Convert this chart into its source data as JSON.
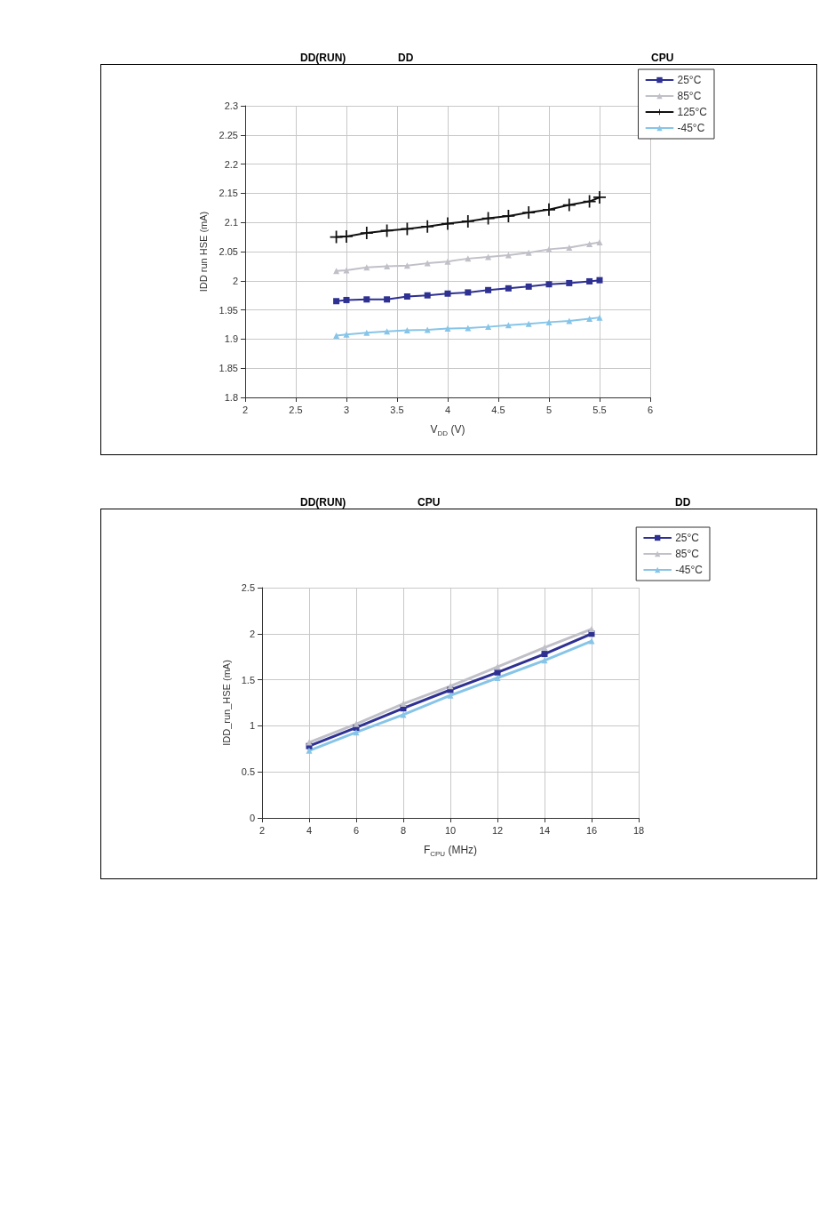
{
  "chart_data": [
    {
      "type": "line",
      "annotations": [
        "DD(RUN)",
        "DD",
        "CPU"
      ],
      "xlabel": "V$_{DD}$ (V)",
      "ylabel": "IDD run HSE (mA)",
      "x": [
        2.9,
        3.0,
        3.2,
        3.4,
        3.6,
        3.8,
        4.0,
        4.2,
        4.4,
        4.6,
        4.8,
        5.0,
        5.2,
        5.4,
        5.5
      ],
      "series": [
        {
          "name": "25°C",
          "color": "#2e3192",
          "marker": "square",
          "values": [
            1.965,
            1.967,
            1.968,
            1.968,
            1.973,
            1.975,
            1.978,
            1.98,
            1.984,
            1.987,
            1.99,
            1.994,
            1.996,
            1.999,
            2.001
          ]
        },
        {
          "name": "85°C",
          "color": "#c0c0c8",
          "marker": "triangle",
          "values": [
            2.017,
            2.018,
            2.023,
            2.025,
            2.026,
            2.03,
            2.033,
            2.038,
            2.041,
            2.044,
            2.048,
            2.054,
            2.057,
            2.063,
            2.066
          ]
        },
        {
          "name": "125°C",
          "color": "#111111",
          "marker": "cross",
          "values": [
            2.075,
            2.076,
            2.082,
            2.086,
            2.089,
            2.093,
            2.098,
            2.102,
            2.107,
            2.111,
            2.117,
            2.122,
            2.13,
            2.136,
            2.143
          ]
        },
        {
          "name": "-45°C",
          "color": "#87c5e8",
          "marker": "triangle",
          "values": [
            1.906,
            1.908,
            1.911,
            1.913,
            1.915,
            1.916,
            1.918,
            1.919,
            1.921,
            1.924,
            1.926,
            1.929,
            1.931,
            1.935,
            1.937
          ]
        }
      ],
      "xlim": [
        2,
        6
      ],
      "xticks": [
        2,
        2.5,
        3,
        3.5,
        4,
        4.5,
        5,
        5.5,
        6
      ],
      "ylim": [
        1.8,
        2.3
      ],
      "yticks": [
        1.8,
        1.85,
        1.9,
        1.95,
        2,
        2.05,
        2.1,
        2.15,
        2.2,
        2.25,
        2.3
      ],
      "grid": true,
      "legend": "top right"
    },
    {
      "type": "line",
      "annotations": [
        "DD(RUN)",
        "CPU",
        "DD"
      ],
      "xlabel": "F$_{CPU}$ (MHz)",
      "ylabel": "IDD_run_HSE (mA)",
      "x": [
        4,
        6,
        8,
        10,
        12,
        14,
        16
      ],
      "series": [
        {
          "name": "25°C",
          "color": "#2e3192",
          "marker": "square",
          "values": [
            0.78,
            0.98,
            1.19,
            1.39,
            1.58,
            1.78,
            2.0
          ]
        },
        {
          "name": "85°C",
          "color": "#c0c0c8",
          "marker": "triangle",
          "values": [
            0.82,
            1.02,
            1.24,
            1.43,
            1.64,
            1.85,
            2.05
          ]
        },
        {
          "name": "-45°C",
          "color": "#87c5e8",
          "marker": "triangle",
          "values": [
            0.73,
            0.93,
            1.12,
            1.33,
            1.52,
            1.71,
            1.92
          ]
        }
      ],
      "xlim": [
        2,
        18
      ],
      "xticks": [
        2,
        4,
        6,
        8,
        10,
        12,
        14,
        16,
        18
      ],
      "ylim": [
        0,
        2.5
      ],
      "yticks": [
        0,
        0.5,
        1,
        1.5,
        2,
        2.5
      ],
      "grid": true,
      "legend": "top right"
    }
  ]
}
